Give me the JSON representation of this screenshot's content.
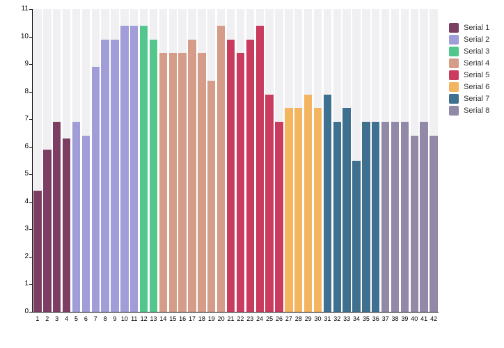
{
  "chart": {
    "background_color": "#ffffff",
    "band_color": "#f0eff1",
    "axis_color": "#000000",
    "legend_text_color": "#333333",
    "y_tick_labels": [
      "0",
      "1",
      "2",
      "3",
      "4",
      "5",
      "6",
      "7",
      "8",
      "9",
      "10",
      "11"
    ]
  },
  "chart_data": {
    "type": "bar",
    "title": "",
    "xlabel": "",
    "ylabel": "",
    "ylim": [
      0,
      11
    ],
    "grid": false,
    "legend_position": "right",
    "show_background_bands": true,
    "categories": [
      "1",
      "2",
      "3",
      "4",
      "5",
      "6",
      "7",
      "8",
      "9",
      "10",
      "11",
      "12",
      "13",
      "14",
      "15",
      "16",
      "17",
      "18",
      "19",
      "20",
      "21",
      "22",
      "23",
      "24",
      "25",
      "26",
      "27",
      "28",
      "29",
      "30",
      "31",
      "32",
      "33",
      "34",
      "35",
      "36",
      "37",
      "38",
      "39",
      "40",
      "41",
      "42"
    ],
    "series": [
      {
        "name": "Serial 1",
        "color": "#7c3e63",
        "x_start": 1,
        "values": [
          4.4,
          5.9,
          6.9,
          6.3
        ]
      },
      {
        "name": "Serial 2",
        "color": "#a19dd8",
        "x_start": 5,
        "values": [
          6.9,
          6.4,
          8.9,
          9.9,
          9.9,
          10.4,
          10.4
        ]
      },
      {
        "name": "Serial 3",
        "color": "#52c68c",
        "x_start": 12,
        "values": [
          10.4,
          9.9
        ]
      },
      {
        "name": "Serial 4",
        "color": "#d59d89",
        "x_start": 14,
        "values": [
          9.4,
          9.4,
          9.4,
          9.9,
          9.4,
          8.4,
          10.4
        ]
      },
      {
        "name": "Serial 5",
        "color": "#ca3c5f",
        "x_start": 21,
        "values": [
          9.9,
          9.4,
          9.9,
          10.4,
          7.9,
          6.9
        ]
      },
      {
        "name": "Serial 6",
        "color": "#f4b561",
        "x_start": 27,
        "values": [
          7.4,
          7.4,
          7.9,
          7.4
        ]
      },
      {
        "name": "Serial 7",
        "color": "#40708f",
        "x_start": 31,
        "values": [
          7.9,
          6.9,
          7.4,
          5.5,
          6.9,
          6.9
        ]
      },
      {
        "name": "Serial 8",
        "color": "#9189a7",
        "x_start": 37,
        "values": [
          6.9,
          6.9,
          6.9,
          6.4,
          6.9,
          6.4
        ]
      }
    ]
  }
}
